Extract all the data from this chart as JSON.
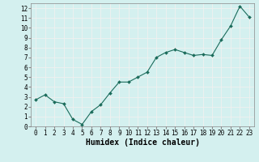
{
  "x": [
    0,
    1,
    2,
    3,
    4,
    5,
    6,
    7,
    8,
    9,
    10,
    11,
    12,
    13,
    14,
    15,
    16,
    17,
    18,
    19,
    20,
    21,
    22,
    23
  ],
  "y": [
    2.7,
    3.2,
    2.5,
    2.3,
    0.7,
    0.2,
    1.5,
    2.2,
    3.4,
    4.5,
    4.5,
    5.0,
    5.5,
    7.0,
    7.5,
    7.8,
    7.5,
    7.2,
    7.3,
    7.2,
    8.8,
    10.2,
    12.2,
    11.1
  ],
  "xlabel": "Humidex (Indice chaleur)",
  "bg_color": "#d4f0ef",
  "grid_color": "#f0f0f0",
  "line_color": "#1a6b5a",
  "marker_color": "#1a6b5a",
  "xlim": [
    -0.5,
    23.5
  ],
  "ylim": [
    0,
    12.5
  ],
  "yticks": [
    0,
    1,
    2,
    3,
    4,
    5,
    6,
    7,
    8,
    9,
    10,
    11,
    12
  ],
  "xticks": [
    0,
    1,
    2,
    3,
    4,
    5,
    6,
    7,
    8,
    9,
    10,
    11,
    12,
    13,
    14,
    15,
    16,
    17,
    18,
    19,
    20,
    21,
    22,
    23
  ],
  "tick_fontsize": 5.5,
  "xlabel_fontsize": 7.0
}
